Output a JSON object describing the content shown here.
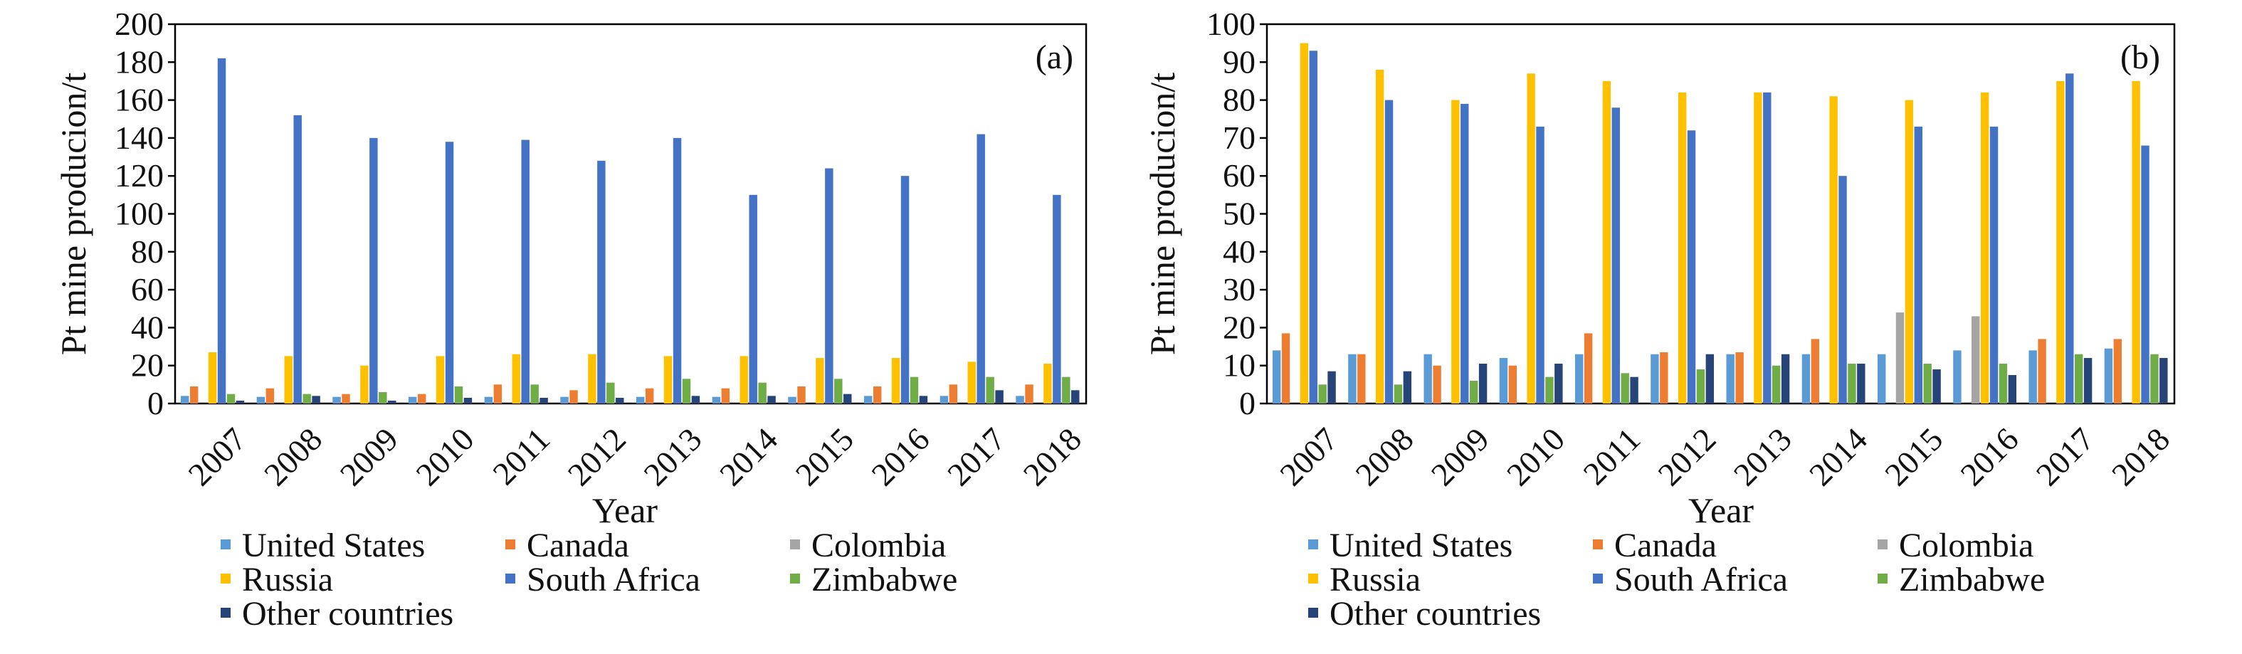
{
  "chart_data": [
    {
      "type": "bar",
      "panel_label": "(a)",
      "xlabel": "Year",
      "ylabel": "Pt mine producion/t",
      "ylim": [
        0,
        200
      ],
      "yticks": [
        0,
        20,
        40,
        60,
        80,
        100,
        120,
        140,
        160,
        180,
        200
      ],
      "grid": false,
      "legend_position": "bottom",
      "categories": [
        "2007",
        "2008",
        "2009",
        "2010",
        "2011",
        "2012",
        "2013",
        "2014",
        "2015",
        "2016",
        "2017",
        "2018"
      ],
      "series": [
        {
          "name": "United States",
          "color": "#5b9bd5",
          "values": [
            4,
            3.5,
            3.5,
            3.5,
            3.5,
            3.5,
            3.5,
            3.5,
            3.5,
            4,
            4,
            4
          ]
        },
        {
          "name": "Canada",
          "color": "#ed7d31",
          "values": [
            9,
            8,
            5,
            5,
            10,
            7,
            8,
            8,
            9,
            9,
            10,
            10
          ]
        },
        {
          "name": "Colombia",
          "color": "#a5a5a5",
          "values": [
            0,
            0,
            0,
            0,
            0,
            0,
            0,
            0,
            0,
            0,
            0,
            0
          ]
        },
        {
          "name": "Russia",
          "color": "#ffc000",
          "values": [
            27,
            25,
            20,
            25,
            26,
            26,
            25,
            25,
            24,
            24,
            22,
            21
          ]
        },
        {
          "name": "South Africa",
          "color": "#4472c4",
          "values": [
            182,
            152,
            140,
            138,
            139,
            128,
            140,
            110,
            124,
            120,
            142,
            110
          ]
        },
        {
          "name": "Zimbabwe",
          "color": "#70ad47",
          "values": [
            5,
            5,
            6,
            9,
            10,
            11,
            13,
            11,
            13,
            14,
            14,
            14
          ]
        },
        {
          "name": "Other countries",
          "color": "#264478",
          "values": [
            1.5,
            4,
            1.5,
            3,
            3,
            3,
            4,
            4,
            5,
            4,
            7,
            7
          ]
        }
      ]
    },
    {
      "type": "bar",
      "panel_label": "(b)",
      "xlabel": "Year",
      "ylabel": "Pt mine producion/t",
      "ylim": [
        0,
        100
      ],
      "yticks": [
        0,
        10,
        20,
        30,
        40,
        50,
        60,
        70,
        80,
        90,
        100
      ],
      "grid": false,
      "legend_position": "bottom",
      "categories": [
        "2007",
        "2008",
        "2009",
        "2010",
        "2011",
        "2012",
        "2013",
        "2014",
        "2015",
        "2016",
        "2017",
        "2018"
      ],
      "series": [
        {
          "name": "United States",
          "color": "#5b9bd5",
          "values": [
            14,
            13,
            13,
            12,
            13,
            13,
            13,
            13,
            13,
            14,
            14,
            14.5
          ]
        },
        {
          "name": "Canada",
          "color": "#ed7d31",
          "values": [
            18.5,
            13,
            10,
            10,
            18.5,
            13.5,
            13.5,
            17,
            0,
            0,
            17,
            17
          ]
        },
        {
          "name": "Colombia",
          "color": "#a5a5a5",
          "values": [
            0,
            0,
            0,
            0,
            0,
            0,
            0,
            0,
            24,
            23,
            0,
            0
          ]
        },
        {
          "name": "Russia",
          "color": "#ffc000",
          "values": [
            95,
            88,
            80,
            87,
            85,
            82,
            82,
            81,
            80,
            82,
            85,
            85
          ]
        },
        {
          "name": "South Africa",
          "color": "#4472c4",
          "values": [
            93,
            80,
            79,
            73,
            78,
            72,
            82,
            60,
            73,
            73,
            87,
            68
          ]
        },
        {
          "name": "Zimbabwe",
          "color": "#70ad47",
          "values": [
            5,
            5,
            6,
            7,
            8,
            9,
            10,
            10.5,
            10.5,
            10.5,
            13,
            13
          ]
        },
        {
          "name": "Other countries",
          "color": "#264478",
          "values": [
            8.5,
            8.5,
            10.5,
            10.5,
            7,
            13,
            13,
            10.5,
            9,
            7.5,
            12,
            12
          ]
        }
      ]
    }
  ]
}
